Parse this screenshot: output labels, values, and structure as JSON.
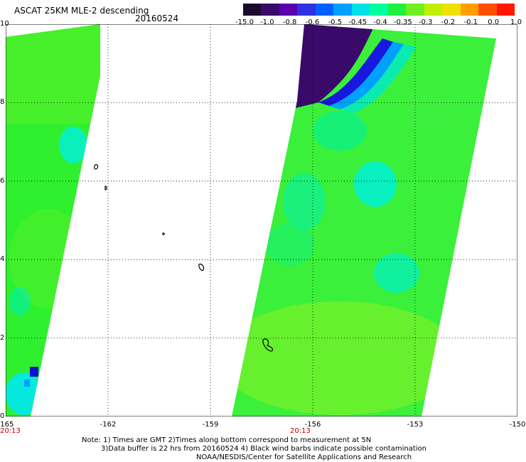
{
  "header": {
    "title": "ASCAT 25KM MLE-2 descending",
    "date": "20160524"
  },
  "colorbar": {
    "labels": [
      "-15.0",
      "-1.0",
      "-0.8",
      "-0.6",
      "-0.5",
      "-0.45",
      "-0.4",
      "-0.35",
      "-0.3",
      "-0.2",
      "-0.1",
      "0.0",
      "1.0"
    ],
    "colors": [
      "#1a0a2e",
      "#3a0a6a",
      "#5a00b0",
      "#3030e0",
      "#0060ff",
      "#00a0ff",
      "#00e0e8",
      "#00ffa0",
      "#20f040",
      "#70f020",
      "#c0f000",
      "#f0e000",
      "#ffa000",
      "#ff5000",
      "#ff1800"
    ]
  },
  "map": {
    "lon_range": [
      -165,
      -150
    ],
    "lat_range": [
      0,
      10
    ],
    "x_ticks": [
      "-165",
      "-162",
      "-159",
      "-156",
      "-153",
      "-150"
    ],
    "y_ticks": [
      "0",
      "2",
      "4",
      "6",
      "8",
      "10"
    ],
    "swaths": [
      {
        "name": "west-swath",
        "time": "20:13"
      },
      {
        "name": "east-swath",
        "time": "20:13"
      }
    ]
  },
  "notes": {
    "line1": "Note: 1) Times are GMT 2)Times along bottom correspond to measurement at 5N",
    "line2": "3)Data buffer is 22 hrs from 20160524 4) Black wind barbs indicate possible contamination",
    "line3": "NOAA/NESDIS/Center for Satellite Applications and Research"
  }
}
